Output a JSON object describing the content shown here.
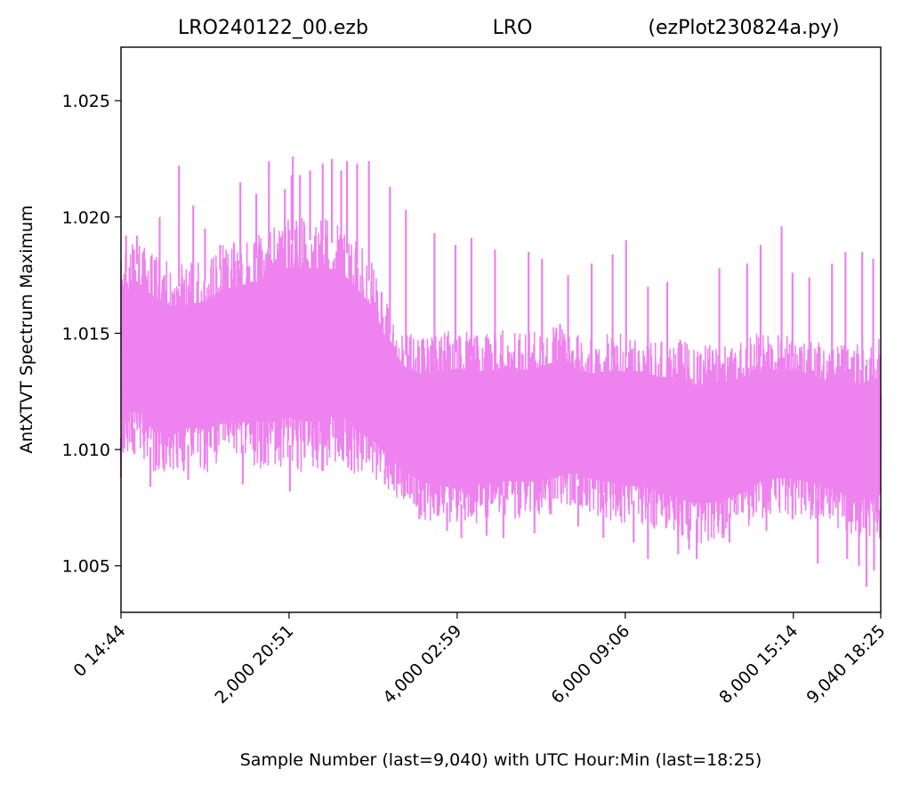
{
  "header": {
    "file_name": "LRO240122_00.ezb",
    "station": "LRO",
    "script_name": "(ezPlot230824a.py)"
  },
  "chart_data": {
    "type": "line",
    "title_left": "LRO240122_00.ezb",
    "title_center": "LRO",
    "title_right": "(ezPlot230824a.py)",
    "xlabel": "Sample Number (last=9,040) with UTC Hour:Min (last=18:25)",
    "ylabel": "AntXTVT Spectrum Maximum",
    "xlim": [
      0,
      9040
    ],
    "ylim": [
      1.003,
      1.0273
    ],
    "x_ticks": [
      {
        "value": 0,
        "label": "0  14:44"
      },
      {
        "value": 2000,
        "label": "2,000  20:51"
      },
      {
        "value": 4000,
        "label": "4,000  02:59"
      },
      {
        "value": 6000,
        "label": "6,000  09:06"
      },
      {
        "value": 8000,
        "label": "8,000  15:14"
      },
      {
        "value": 9040,
        "label": "9,040  18:25"
      }
    ],
    "y_ticks": [
      {
        "value": 1.005,
        "label": "1.005"
      },
      {
        "value": 1.01,
        "label": "1.010"
      },
      {
        "value": 1.015,
        "label": "1.015"
      },
      {
        "value": 1.02,
        "label": "1.020"
      },
      {
        "value": 1.025,
        "label": "1.025"
      }
    ],
    "grid": false,
    "legend": "none",
    "line_color": "#ee82ee",
    "series": [
      {
        "envelope_x": [
          0,
          200,
          400,
          600,
          800,
          1000,
          1200,
          1400,
          1600,
          1800,
          2000,
          2200,
          2400,
          2600,
          2800,
          3000,
          3200,
          3400,
          3600,
          3800,
          4000,
          4200,
          4400,
          4600,
          4800,
          5000,
          5200,
          5400,
          5600,
          5800,
          6000,
          6200,
          6400,
          6600,
          6800,
          7000,
          7200,
          7400,
          7600,
          7800,
          8000,
          8200,
          8400,
          8600,
          8800,
          9040
        ],
        "envelope_low": [
          1.0095,
          1.01,
          1.0088,
          1.0088,
          1.0092,
          1.009,
          1.0092,
          1.0092,
          1.0092,
          1.009,
          1.0092,
          1.009,
          1.009,
          1.0095,
          1.0088,
          1.0085,
          1.008,
          1.0075,
          1.007,
          1.0068,
          1.0066,
          1.0068,
          1.007,
          1.007,
          1.007,
          1.007,
          1.0072,
          1.0075,
          1.0072,
          1.007,
          1.0068,
          1.0068,
          1.0065,
          1.0062,
          1.006,
          1.006,
          1.0062,
          1.0065,
          1.007,
          1.0072,
          1.0072,
          1.007,
          1.0068,
          1.0065,
          1.0062,
          1.0064
        ],
        "envelope_high": [
          1.0185,
          1.019,
          1.0185,
          1.018,
          1.018,
          1.0182,
          1.0188,
          1.019,
          1.0192,
          1.0198,
          1.02,
          1.02,
          1.02,
          1.0198,
          1.019,
          1.018,
          1.016,
          1.015,
          1.0148,
          1.015,
          1.0152,
          1.015,
          1.015,
          1.0152,
          1.015,
          1.0152,
          1.0155,
          1.015,
          1.0148,
          1.015,
          1.015,
          1.015,
          1.0148,
          1.0148,
          1.0145,
          1.0145,
          1.0145,
          1.0148,
          1.015,
          1.015,
          1.015,
          1.0148,
          1.0145,
          1.0145,
          1.0145,
          1.0148
        ],
        "spikes_up": [
          [
            60,
            1.0192
          ],
          [
            190,
            1.0192
          ],
          [
            460,
            1.02
          ],
          [
            690,
            1.0222
          ],
          [
            860,
            1.0205
          ],
          [
            1000,
            1.0195
          ],
          [
            1180,
            1.0188
          ],
          [
            1420,
            1.0215
          ],
          [
            1610,
            1.021
          ],
          [
            1760,
            1.0224
          ],
          [
            1950,
            1.0212
          ],
          [
            2030,
            1.0218
          ],
          [
            2045,
            1.0226
          ],
          [
            2130,
            1.0218
          ],
          [
            2250,
            1.022
          ],
          [
            2400,
            1.0223
          ],
          [
            2510,
            1.0225
          ],
          [
            2620,
            1.022
          ],
          [
            2690,
            1.0224
          ],
          [
            2810,
            1.0223
          ],
          [
            2950,
            1.0224
          ],
          [
            3200,
            1.0213
          ],
          [
            3390,
            1.0203
          ],
          [
            3730,
            1.0193
          ],
          [
            3980,
            1.0188
          ],
          [
            4170,
            1.0191
          ],
          [
            4450,
            1.0186
          ],
          [
            4850,
            1.0185
          ],
          [
            5010,
            1.0182
          ],
          [
            5320,
            1.0175
          ],
          [
            5600,
            1.018
          ],
          [
            5850,
            1.0184
          ],
          [
            6010,
            1.019
          ],
          [
            6270,
            1.017
          ],
          [
            6500,
            1.0172
          ],
          [
            7120,
            1.0178
          ],
          [
            7450,
            1.018
          ],
          [
            7610,
            1.0188
          ],
          [
            7860,
            1.0196
          ],
          [
            7990,
            1.0176
          ],
          [
            8190,
            1.0174
          ],
          [
            8460,
            1.018
          ],
          [
            8620,
            1.0185
          ],
          [
            8820,
            1.0185
          ],
          [
            8950,
            1.0182
          ]
        ],
        "spikes_down": [
          [
            0,
            1.0088
          ],
          [
            160,
            1.0098
          ],
          [
            350,
            1.0084
          ],
          [
            800,
            1.0087
          ],
          [
            1450,
            1.0085
          ],
          [
            2010,
            1.0082
          ],
          [
            3140,
            1.0085
          ],
          [
            3550,
            1.007
          ],
          [
            3880,
            1.0065
          ],
          [
            4050,
            1.0062
          ],
          [
            4350,
            1.0063
          ],
          [
            4550,
            1.0062
          ],
          [
            4920,
            1.0064
          ],
          [
            5440,
            1.0067
          ],
          [
            5740,
            1.0062
          ],
          [
            6100,
            1.006
          ],
          [
            6270,
            1.0053
          ],
          [
            6630,
            1.0055
          ],
          [
            6760,
            1.0057
          ],
          [
            6850,
            1.0053
          ],
          [
            7240,
            1.006
          ],
          [
            7680,
            1.0065
          ],
          [
            7990,
            1.007
          ],
          [
            8290,
            1.0051
          ],
          [
            8640,
            1.0053
          ],
          [
            8780,
            1.005
          ],
          [
            8870,
            1.0041
          ],
          [
            8960,
            1.0048
          ],
          [
            9030,
            1.0062
          ]
        ]
      }
    ]
  }
}
